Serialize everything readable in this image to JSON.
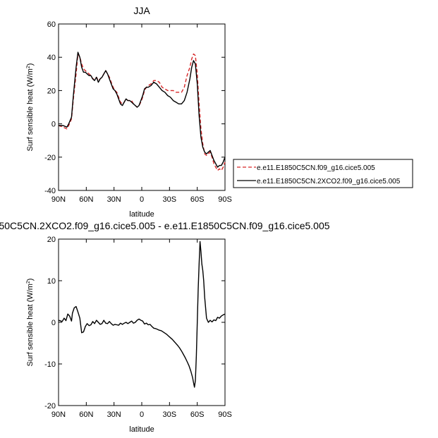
{
  "chart_data": [
    {
      "type": "line",
      "title": "JJA",
      "xlabel": "latitude",
      "ylabel_main": "Surf sensible heat (W/m",
      "ylabel_sup": "2",
      "ylabel_close": ")",
      "xlim": [
        90,
        -90
      ],
      "ylim": [
        -40,
        60
      ],
      "x_ticks": [
        {
          "value": 90,
          "label": "90N"
        },
        {
          "value": 60,
          "label": "60N"
        },
        {
          "value": 30,
          "label": "30N"
        },
        {
          "value": 0,
          "label": "0"
        },
        {
          "value": -30,
          "label": "30S"
        },
        {
          "value": -60,
          "label": "60S"
        },
        {
          "value": -90,
          "label": "90S"
        }
      ],
      "y_ticks": [
        {
          "value": 60,
          "label": "60"
        },
        {
          "value": 40,
          "label": "40"
        },
        {
          "value": 20,
          "label": "20"
        },
        {
          "value": 0,
          "label": "0"
        },
        {
          "value": -20,
          "label": "-20"
        },
        {
          "value": -40,
          "label": "-40"
        }
      ],
      "grid": false,
      "legend_position": "right",
      "series": [
        {
          "name": "e.e11.E1850C5CN.f09_g16.cice5.005",
          "color": "#d62728",
          "dash": true,
          "x": [
            90,
            85,
            81,
            79,
            76,
            74,
            71,
            69,
            67,
            65,
            63,
            61,
            59,
            57,
            55,
            53,
            51,
            49,
            47,
            45,
            43,
            41,
            39,
            37,
            35,
            33,
            31,
            29,
            27,
            25,
            23,
            21,
            19,
            17,
            15,
            13,
            11,
            9,
            7,
            5,
            3,
            1,
            -1,
            -3,
            -5,
            -7,
            -10,
            -13,
            -16,
            -19,
            -22,
            -25,
            -28,
            -31,
            -34,
            -37,
            -40,
            -43,
            -46,
            -49,
            -52,
            -54,
            -56,
            -58,
            -60,
            -62,
            -64,
            -66,
            -68,
            -70,
            -72,
            -74,
            -76,
            -78,
            -80,
            -82,
            -84,
            -86,
            -88,
            -90
          ],
          "y": [
            -1,
            -2,
            -3,
            -1,
            3,
            15,
            30,
            42,
            40,
            36,
            33,
            32,
            31,
            30,
            29,
            27,
            27,
            28,
            26,
            27,
            28,
            30,
            32,
            30,
            28,
            25,
            22,
            20,
            19,
            16,
            13,
            12,
            13,
            15,
            14,
            14,
            14,
            12,
            11,
            10,
            11,
            13,
            16,
            20,
            22,
            23,
            24,
            26,
            26,
            25,
            22,
            21,
            20,
            20,
            20,
            19,
            19,
            19,
            22,
            29,
            34,
            39,
            42,
            41,
            30,
            12,
            -3,
            -12,
            -18,
            -19,
            -18,
            -17,
            -20,
            -24,
            -26,
            -28,
            -27,
            -28,
            -26,
            -23
          ]
        },
        {
          "name": "e.e11.E1850C5CN.2XCO2.f09_g16.cice5.005",
          "color": "#000000",
          "dash": false,
          "x": [
            90,
            85,
            81,
            79,
            76,
            74,
            71,
            69,
            67,
            65,
            63,
            61,
            59,
            57,
            55,
            53,
            51,
            49,
            47,
            45,
            43,
            41,
            39,
            37,
            35,
            33,
            31,
            29,
            27,
            25,
            23,
            21,
            19,
            17,
            15,
            13,
            11,
            9,
            7,
            5,
            3,
            1,
            -1,
            -3,
            -5,
            -7,
            -10,
            -13,
            -16,
            -19,
            -22,
            -25,
            -28,
            -31,
            -34,
            -37,
            -40,
            -43,
            -46,
            -49,
            -52,
            -54,
            -56,
            -58,
            -60,
            -62,
            -64,
            -66,
            -68,
            -70,
            -72,
            -74,
            -76,
            -78,
            -80,
            -82,
            -84,
            -86,
            -88,
            -90
          ],
          "y": [
            -1,
            -1,
            -2,
            0,
            4,
            17,
            34,
            43,
            40,
            34,
            31,
            31,
            30,
            29,
            29,
            27,
            26,
            28,
            25,
            27,
            28,
            30,
            32,
            30,
            27,
            24,
            21,
            20,
            18,
            15,
            12,
            11,
            13,
            15,
            14,
            14,
            13,
            12,
            11,
            10,
            11,
            14,
            17,
            21,
            22,
            22,
            23,
            25,
            24,
            22,
            20,
            19,
            17,
            16,
            14,
            13,
            12,
            12,
            14,
            19,
            27,
            34,
            38,
            36,
            24,
            5,
            -8,
            -14,
            -17,
            -18,
            -17,
            -16,
            -19,
            -22,
            -24,
            -26,
            -25,
            -25,
            -23,
            -20
          ]
        }
      ]
    },
    {
      "type": "line",
      "title": "50C5CN.2XCO2.f09_g16.cice5.005 - e.e11.E1850C5CN.f09_g16.cice5.005",
      "xlabel": "latitude",
      "ylabel_main": "Surf sensible heat (W/m",
      "ylabel_sup": "2",
      "ylabel_close": ")",
      "xlim": [
        90,
        -90
      ],
      "ylim": [
        -20,
        20
      ],
      "x_ticks": [
        {
          "value": 90,
          "label": "90N"
        },
        {
          "value": 60,
          "label": "60N"
        },
        {
          "value": 30,
          "label": "30N"
        },
        {
          "value": 0,
          "label": "0"
        },
        {
          "value": -30,
          "label": "30S"
        },
        {
          "value": -60,
          "label": "60S"
        },
        {
          "value": -90,
          "label": "90S"
        }
      ],
      "y_ticks": [
        {
          "value": 20,
          "label": "20"
        },
        {
          "value": 10,
          "label": "10"
        },
        {
          "value": 0,
          "label": "0"
        },
        {
          "value": -10,
          "label": "-10"
        },
        {
          "value": -20,
          "label": "-20"
        }
      ],
      "grid": false,
      "series": [
        {
          "color": "#000000",
          "dash": false,
          "x": [
            90,
            86,
            84,
            82,
            80,
            78,
            76,
            75,
            73,
            71,
            69,
            67,
            65,
            63,
            61,
            59,
            57,
            55,
            53,
            51,
            49,
            47,
            45,
            43,
            41,
            39,
            37,
            35,
            33,
            31,
            29,
            27,
            25,
            23,
            21,
            19,
            17,
            15,
            13,
            11,
            9,
            7,
            5,
            3,
            1,
            -1,
            -3,
            -5,
            -7,
            -9,
            -11,
            -13,
            -15,
            -17,
            -19,
            -21,
            -23,
            -25,
            -27,
            -29,
            -31,
            -33,
            -35,
            -37,
            -39,
            -41,
            -43,
            -45,
            -47,
            -49,
            -51,
            -53,
            -55,
            -56,
            -57,
            -58,
            -59,
            -60,
            -61,
            -62,
            -63,
            -64,
            -65,
            -66,
            -67,
            -68,
            -70,
            -72,
            -74,
            -76,
            -78,
            -80,
            -82,
            -84,
            -86,
            -88,
            -90
          ],
          "y": [
            0.5,
            0.2,
            1.0,
            0.4,
            2.0,
            1.5,
            0.3,
            2.2,
            3.5,
            3.8,
            2.5,
            1.0,
            -2.5,
            -2.3,
            -1.0,
            -0.3,
            -0.8,
            -0.6,
            0.2,
            -0.3,
            0.5,
            0.0,
            -0.5,
            -0.3,
            0.5,
            -0.2,
            -0.3,
            0.2,
            -0.3,
            -0.7,
            -0.5,
            -0.6,
            -0.7,
            -0.2,
            -0.5,
            -0.2,
            0.0,
            -0.3,
            0.0,
            0.3,
            -0.2,
            0.0,
            0.5,
            0.8,
            0.5,
            0.3,
            -0.4,
            -0.2,
            -0.6,
            -0.5,
            -1.0,
            -1.4,
            -1.5,
            -1.7,
            -1.9,
            -2.0,
            -2.3,
            -2.6,
            -2.9,
            -3.3,
            -3.7,
            -4.1,
            -4.6,
            -5.1,
            -5.6,
            -6.2,
            -6.9,
            -7.7,
            -8.5,
            -9.4,
            -10.4,
            -11.7,
            -13.3,
            -14.5,
            -15.6,
            -14.0,
            -8.0,
            0.0,
            8.0,
            14.0,
            19.4,
            17.0,
            14.0,
            12.5,
            10.0,
            6.0,
            1.0,
            0.0,
            0.5,
            0.1,
            0.6,
            0.4,
            1.2,
            1.0,
            1.5,
            1.8,
            2.0
          ]
        }
      ]
    }
  ]
}
